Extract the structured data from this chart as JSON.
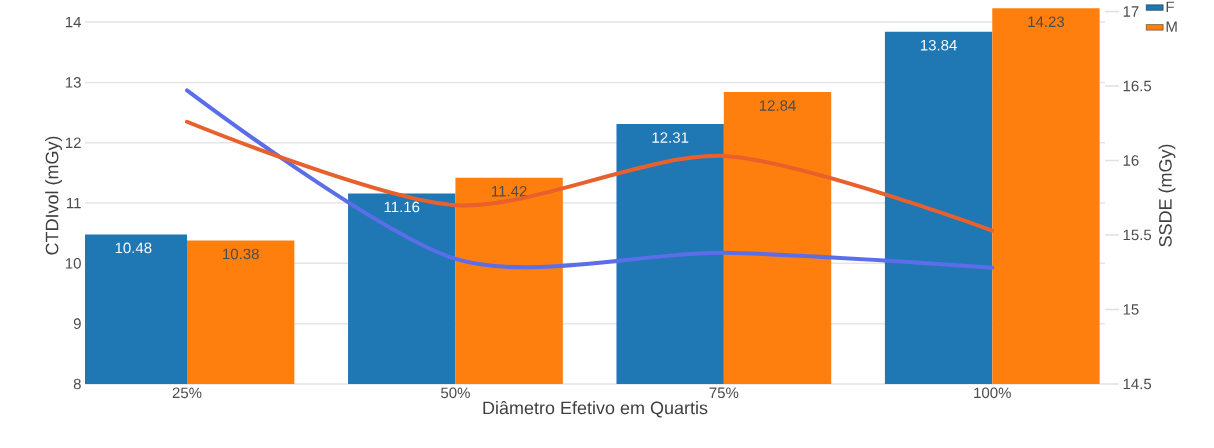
{
  "chart_data": {
    "type": "bar",
    "xlabel": "Diâmetro Efetivo em Quartis",
    "ylabel": "CTDIvol (mGy)",
    "y2label": "SSDE (mGy)",
    "categories": [
      "25%",
      "50%",
      "75%",
      "100%"
    ],
    "series": [
      {
        "name": "F",
        "color": "#1f77b4",
        "values": [
          10.48,
          11.16,
          12.31,
          13.84
        ],
        "value_labels": [
          "10.48",
          "11.16",
          "12.31",
          "13.84"
        ]
      },
      {
        "name": "M",
        "color": "#ff7f0e",
        "values": [
          10.38,
          11.42,
          12.84,
          14.23
        ],
        "value_labels": [
          "10.38",
          "11.42",
          "12.84",
          "14.23"
        ]
      },
      {
        "type": "line",
        "axis": "y2",
        "color": "#5b6ee8",
        "values": [
          16.47,
          15.34,
          15.38,
          15.28
        ]
      },
      {
        "type": "line",
        "axis": "y2",
        "color": "#e8602c",
        "values": [
          16.26,
          15.7,
          16.03,
          15.53
        ]
      }
    ],
    "ylim": [
      8,
      14.25
    ],
    "yticks": [
      8,
      9,
      10,
      11,
      12,
      13,
      14
    ],
    "y2lim": [
      14.5,
      17.03
    ],
    "y2ticks": [
      14.5,
      15,
      15.5,
      16,
      16.5,
      17
    ],
    "grid": "y",
    "legend": "top right"
  }
}
